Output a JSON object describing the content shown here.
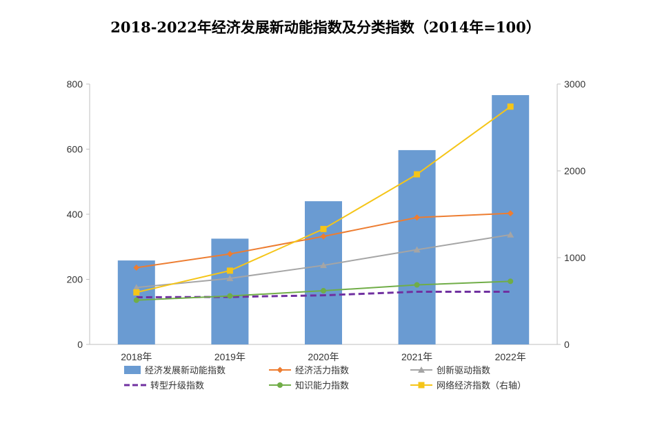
{
  "chart_data": {
    "type": "bar",
    "title": "2018-2022年经济发展新动能指数及分类指数（2014年=100）",
    "categories": [
      "2018年",
      "2019年",
      "2020年",
      "2021年",
      "2022年"
    ],
    "y_left": {
      "min": 0,
      "max": 800,
      "ticks": [
        "0",
        "200",
        "400",
        "600",
        "800"
      ]
    },
    "y_right": {
      "min": 0,
      "max": 3000,
      "ticks": [
        "0",
        "1000",
        "2000",
        "3000"
      ]
    },
    "grid": false,
    "legend_position": "bottom",
    "series": [
      {
        "name": "经济发展新动能指数",
        "type": "bar",
        "axis": "left",
        "color": "#6a9bd2",
        "marker": "none",
        "dash": false,
        "values": [
          258,
          325,
          440,
          597,
          766
        ]
      },
      {
        "name": "经济活力指数",
        "type": "line",
        "axis": "left",
        "color": "#ed7d31",
        "marker": "diamond",
        "dash": false,
        "values": [
          236,
          278,
          332,
          390,
          403
        ]
      },
      {
        "name": "创新驱动指数",
        "type": "line",
        "axis": "left",
        "color": "#a5a5a5",
        "marker": "triangle",
        "dash": false,
        "values": [
          175,
          203,
          243,
          291,
          337
        ]
      },
      {
        "name": "转型升级指数",
        "type": "line",
        "axis": "left",
        "color": "#7030a0",
        "marker": "none",
        "dash": true,
        "values": [
          145,
          146,
          151,
          162,
          162
        ]
      },
      {
        "name": "知识能力指数",
        "type": "line",
        "axis": "left",
        "color": "#70ad47",
        "marker": "circle",
        "dash": false,
        "values": [
          136,
          149,
          165,
          183,
          194
        ]
      },
      {
        "name": "网络经济指数（右轴）",
        "type": "line",
        "axis": "right",
        "color": "#f5c518",
        "marker": "square",
        "dash": false,
        "values": [
          600,
          850,
          1330,
          1960,
          2740
        ]
      }
    ]
  }
}
